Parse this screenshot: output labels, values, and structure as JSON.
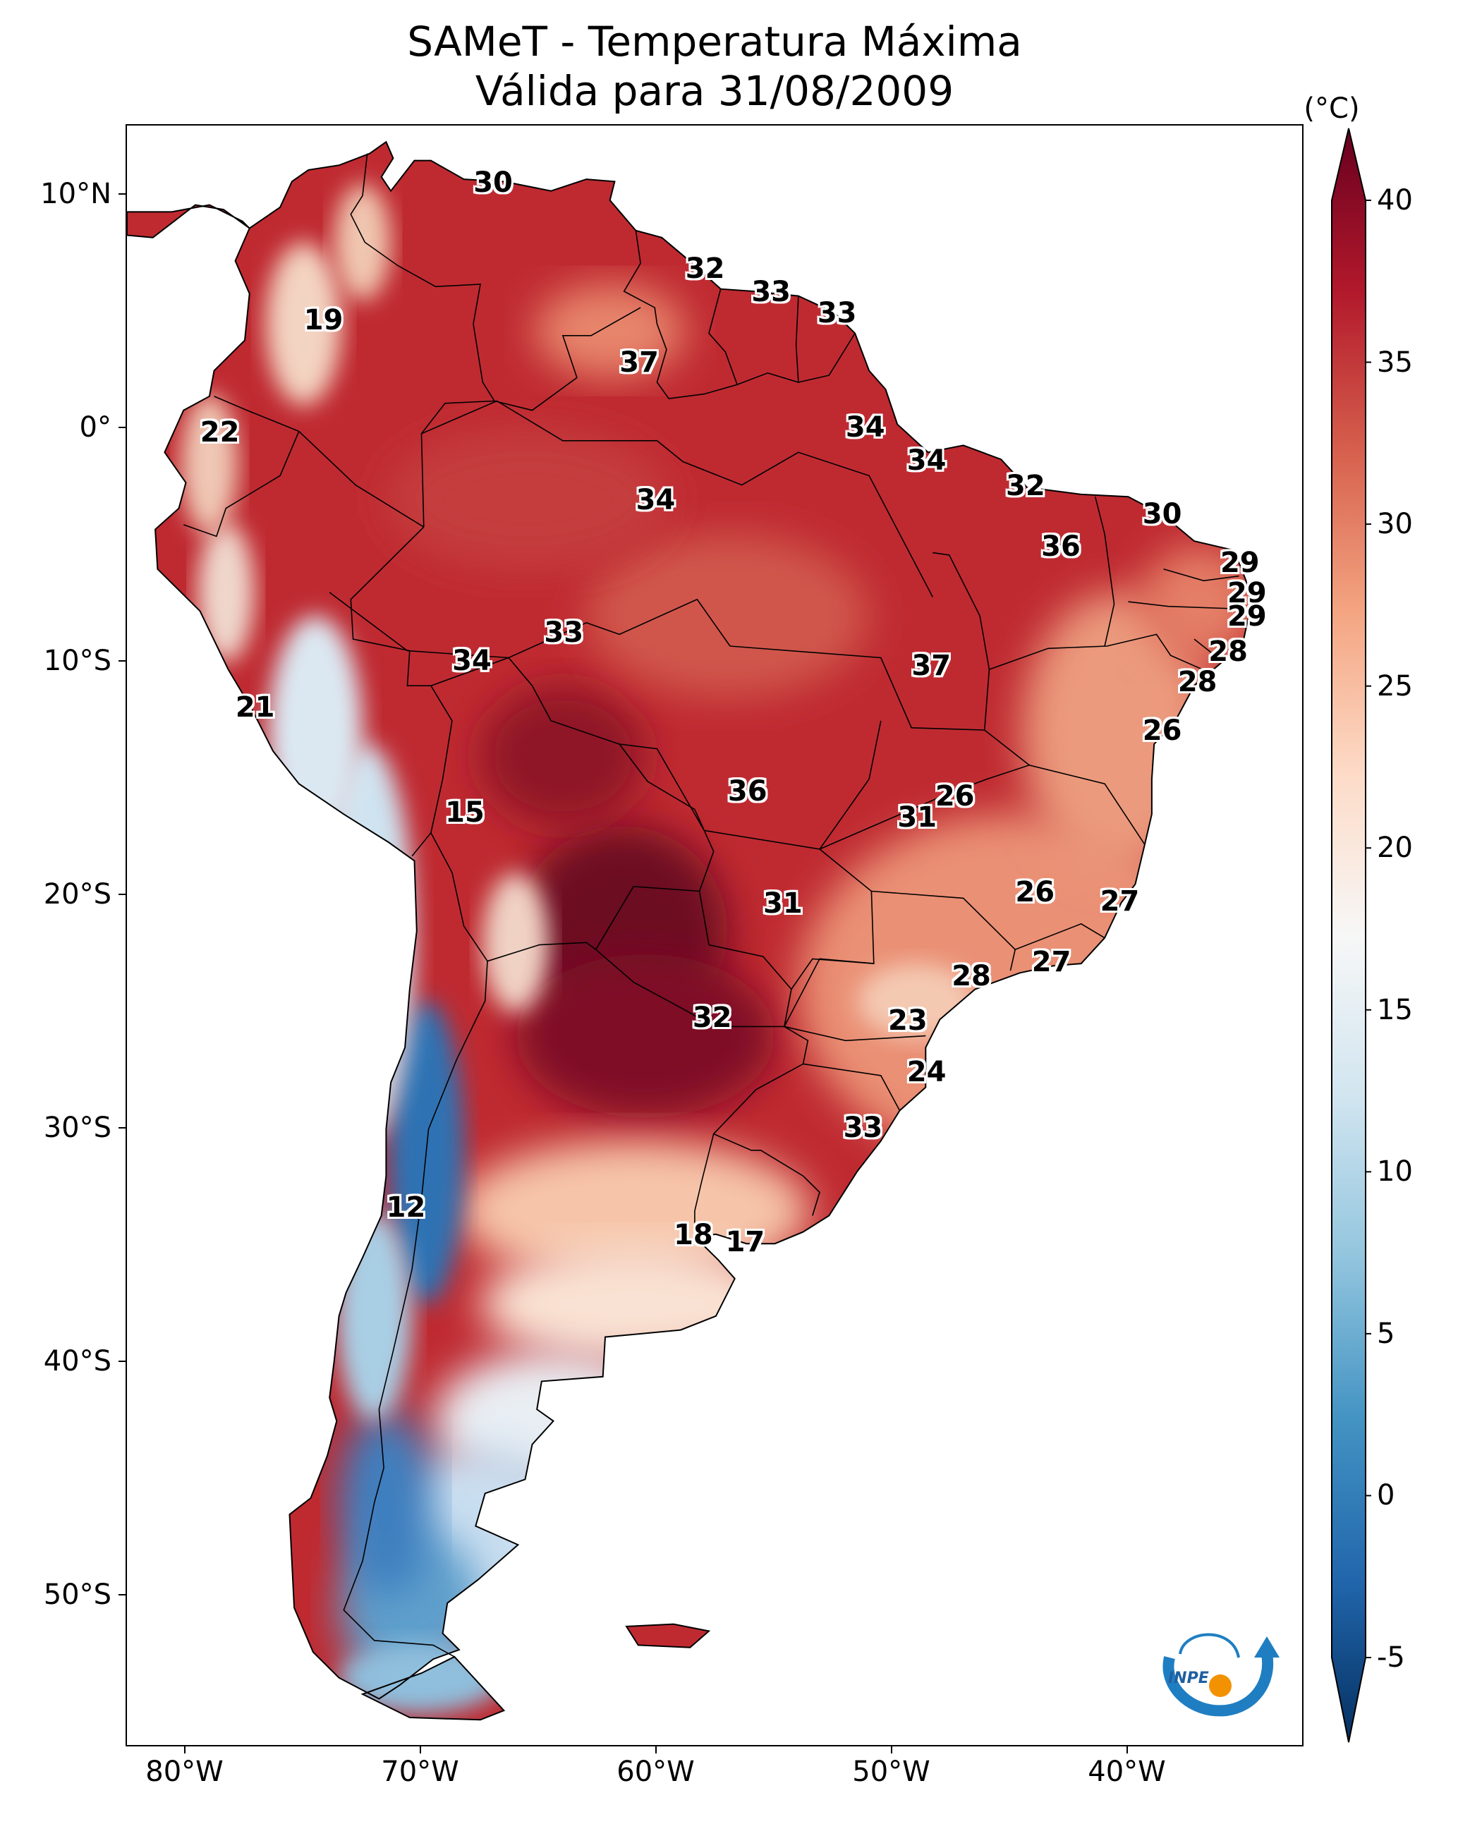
{
  "title": {
    "line1": "SAMeT - Temperatura Máxima",
    "line2": "Válida para 31/08/2009"
  },
  "map": {
    "extent": {
      "lon_min": -82.5,
      "lon_max": -32.5,
      "lat_min": -56.5,
      "lat_max": 13.0
    },
    "lat_ticks": [
      {
        "lat": 10,
        "label": "10°N"
      },
      {
        "lat": 0,
        "label": "0°"
      },
      {
        "lat": -10,
        "label": "10°S"
      },
      {
        "lat": -20,
        "label": "20°S"
      },
      {
        "lat": -30,
        "label": "30°S"
      },
      {
        "lat": -40,
        "label": "40°S"
      },
      {
        "lat": -50,
        "label": "50°S"
      }
    ],
    "lon_ticks": [
      {
        "lon": -80,
        "label": "80°W"
      },
      {
        "lon": -70,
        "label": "70°W"
      },
      {
        "lon": -60,
        "label": "60°W"
      },
      {
        "lon": -50,
        "label": "50°W"
      },
      {
        "lon": -40,
        "label": "40°W"
      }
    ],
    "city_labels": [
      {
        "value": "30",
        "lon": -66.9,
        "lat": 10.5
      },
      {
        "value": "32",
        "lon": -57.9,
        "lat": 6.8
      },
      {
        "value": "33",
        "lon": -55.1,
        "lat": 5.8
      },
      {
        "value": "33",
        "lon": -52.3,
        "lat": 4.9
      },
      {
        "value": "19",
        "lon": -74.1,
        "lat": 4.6
      },
      {
        "value": "37",
        "lon": -60.7,
        "lat": 2.8
      },
      {
        "value": "22",
        "lon": -78.5,
        "lat": -0.2
      },
      {
        "value": "34",
        "lon": -51.1,
        "lat": 0.0
      },
      {
        "value": "34",
        "lon": -48.5,
        "lat": -1.4
      },
      {
        "value": "32",
        "lon": -44.3,
        "lat": -2.5
      },
      {
        "value": "34",
        "lon": -60.0,
        "lat": -3.1
      },
      {
        "value": "30",
        "lon": -38.5,
        "lat": -3.7
      },
      {
        "value": "36",
        "lon": -42.8,
        "lat": -5.1
      },
      {
        "value": "29",
        "lon": -35.2,
        "lat": -5.8
      },
      {
        "value": "29",
        "lon": -34.9,
        "lat": -7.1
      },
      {
        "value": "29",
        "lon": -34.9,
        "lat": -8.1
      },
      {
        "value": "33",
        "lon": -63.9,
        "lat": -8.8
      },
      {
        "value": "28",
        "lon": -35.7,
        "lat": -9.6
      },
      {
        "value": "34",
        "lon": -67.8,
        "lat": -10.0
      },
      {
        "value": "37",
        "lon": -48.3,
        "lat": -10.2
      },
      {
        "value": "28",
        "lon": -37.0,
        "lat": -10.9
      },
      {
        "value": "21",
        "lon": -77.0,
        "lat": -12.0
      },
      {
        "value": "26",
        "lon": -38.5,
        "lat": -13.0
      },
      {
        "value": "36",
        "lon": -56.1,
        "lat": -15.6
      },
      {
        "value": "26",
        "lon": -47.3,
        "lat": -15.8
      },
      {
        "value": "15",
        "lon": -68.1,
        "lat": -16.5
      },
      {
        "value": "31",
        "lon": -48.9,
        "lat": -16.7
      },
      {
        "value": "26",
        "lon": -43.9,
        "lat": -19.9
      },
      {
        "value": "27",
        "lon": -40.3,
        "lat": -20.3
      },
      {
        "value": "31",
        "lon": -54.6,
        "lat": -20.4
      },
      {
        "value": "27",
        "lon": -43.2,
        "lat": -22.9
      },
      {
        "value": "28",
        "lon": -46.6,
        "lat": -23.5
      },
      {
        "value": "32",
        "lon": -57.6,
        "lat": -25.3
      },
      {
        "value": "23",
        "lon": -49.3,
        "lat": -25.4
      },
      {
        "value": "24",
        "lon": -48.5,
        "lat": -27.6
      },
      {
        "value": "33",
        "lon": -51.2,
        "lat": -30.0
      },
      {
        "value": "12",
        "lon": -70.6,
        "lat": -33.4
      },
      {
        "value": "18",
        "lon": -58.4,
        "lat": -34.6
      },
      {
        "value": "17",
        "lon": -56.2,
        "lat": -34.9
      }
    ]
  },
  "colorbar": {
    "unit": "(°C)",
    "range": [
      -5,
      40
    ],
    "ticks": [
      {
        "value": 40,
        "label": "40"
      },
      {
        "value": 35,
        "label": "35"
      },
      {
        "value": 30,
        "label": "30"
      },
      {
        "value": 25,
        "label": "25"
      },
      {
        "value": 20,
        "label": "20"
      },
      {
        "value": 15,
        "label": "15"
      },
      {
        "value": 10,
        "label": "10"
      },
      {
        "value": 5,
        "label": "5"
      },
      {
        "value": 0,
        "label": "0"
      },
      {
        "value": -5,
        "label": "-5"
      }
    ],
    "colors": [
      "#053061",
      "#2166ac",
      "#4393c3",
      "#92c5de",
      "#d1e5f0",
      "#f7f7f7",
      "#fddbc7",
      "#f4a582",
      "#d6604d",
      "#b2182b",
      "#67001f"
    ]
  },
  "logo": {
    "text": "INPE",
    "colors": {
      "arc": "#1f7ec2",
      "dot": "#f39200"
    }
  }
}
